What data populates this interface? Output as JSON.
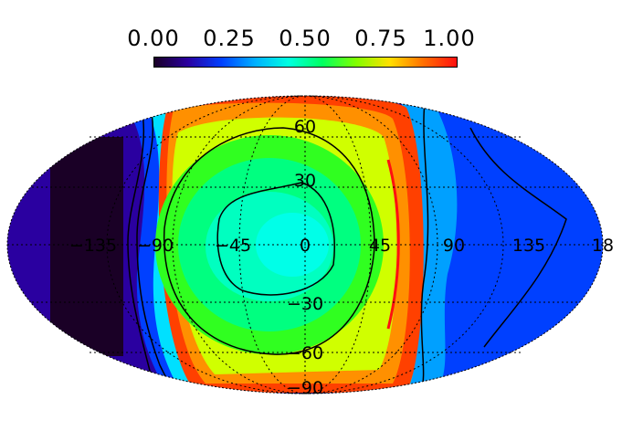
{
  "colorbar": {
    "tick_labels": [
      "0.00",
      "0.25",
      "0.50",
      "0.75",
      "1.00"
    ],
    "colors": [
      "#1a0026",
      "#2a00a0",
      "#0040ff",
      "#00b0ff",
      "#00ffe0",
      "#00ff60",
      "#80ff00",
      "#ffe000",
      "#ff7000",
      "#ff1010"
    ]
  },
  "map": {
    "projection": "mollweide",
    "longitude_labels": [
      "−135",
      "−90",
      "−45",
      "0",
      "45",
      "90",
      "135",
      "18"
    ],
    "latitude_labels": [
      "60",
      "30",
      "−30",
      "−60",
      "−90"
    ]
  }
}
